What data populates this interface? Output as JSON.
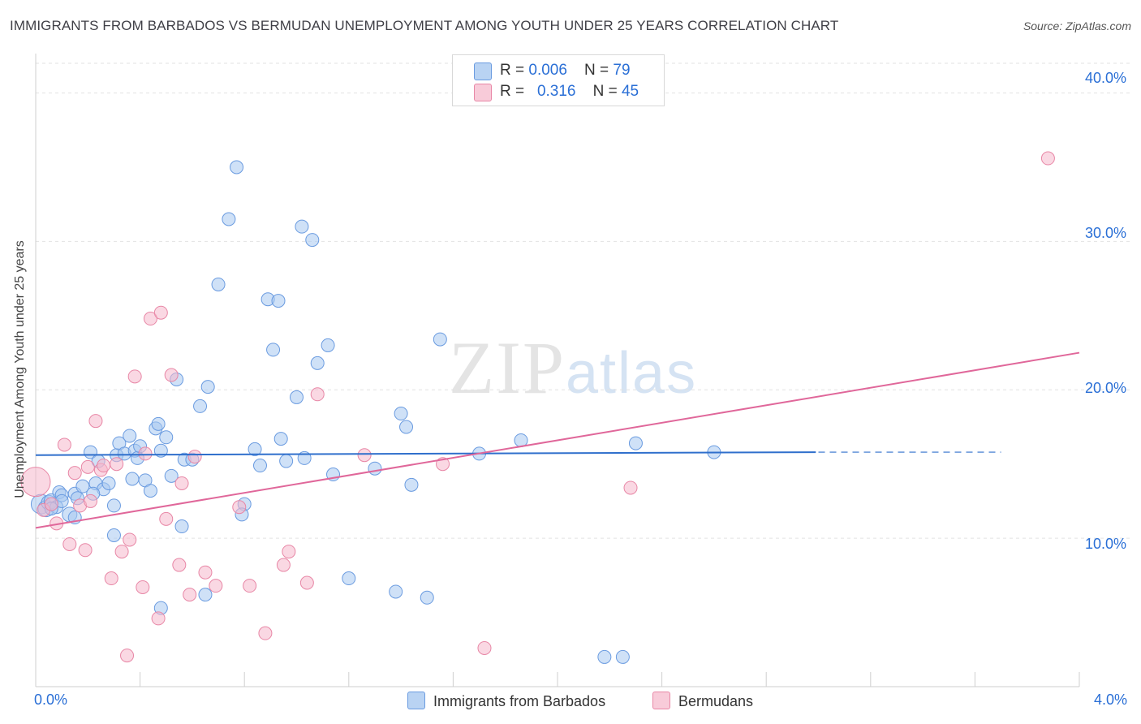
{
  "title": "IMMIGRANTS FROM BARBADOS VS BERMUDAN UNEMPLOYMENT AMONG YOUTH UNDER 25 YEARS CORRELATION CHART",
  "source": "Source: ZipAtlas.com",
  "watermark": {
    "main": "ZIP",
    "sub": "atlas"
  },
  "legend_top": [
    {
      "r_label": "R = ",
      "r_value": "0.006",
      "n_label": "N = ",
      "n_value": "79"
    },
    {
      "r_label": "R = ",
      "r_value": "0.316",
      "n_label": "N = ",
      "n_value": "45"
    }
  ],
  "legend_bottom": [
    "Immigrants from Barbados",
    "Bermudans"
  ],
  "colors": {
    "blue_fill": "#a8c8f0",
    "blue_stroke": "#6a9be0",
    "blue_line": "#2f6fcc",
    "pink_fill": "#f5b8cc",
    "pink_stroke": "#e887a6",
    "pink_line": "#e0679a",
    "tick_text": "#2a6fd6",
    "grid": "#e2e2e2"
  },
  "chart_data": {
    "type": "scatter",
    "xlabel": "",
    "ylabel": "Unemployment Among Youth under 25 years",
    "xlim": [
      0,
      4.0
    ],
    "ylim": [
      0,
      42
    ],
    "x_tick_labels": [
      "0.0%",
      "4.0%"
    ],
    "y_tick_labels": [
      "10.0%",
      "20.0%",
      "30.0%",
      "40.0%"
    ],
    "y_ticks": [
      10,
      20,
      30,
      40
    ],
    "grid": "horizontal dashed",
    "series": [
      {
        "name": "Immigrants from Barbados",
        "color": "blue",
        "trend": {
          "x": [
            0.0,
            3.3
          ],
          "y": [
            15.6,
            15.8
          ]
        },
        "trend_extension": {
          "x": [
            3.0,
            3.7
          ],
          "y": [
            15.8,
            15.8
          ]
        },
        "points": [
          [
            0.02,
            12.3,
            12
          ],
          [
            0.04,
            12.0,
            10
          ],
          [
            0.05,
            12.4,
            9
          ],
          [
            0.06,
            12.5,
            9
          ],
          [
            0.08,
            12.1,
            8
          ],
          [
            0.09,
            13.1,
            8
          ],
          [
            0.1,
            12.9,
            8
          ],
          [
            0.13,
            11.6,
            9
          ],
          [
            0.15,
            13.0,
            8
          ],
          [
            0.16,
            12.7,
            8
          ],
          [
            0.18,
            13.5,
            8
          ],
          [
            0.21,
            15.8,
            8
          ],
          [
            0.23,
            13.7,
            8
          ],
          [
            0.24,
            15.2,
            8
          ],
          [
            0.26,
            13.3,
            8
          ],
          [
            0.28,
            13.7,
            8
          ],
          [
            0.3,
            12.2,
            8
          ],
          [
            0.31,
            15.6,
            8
          ],
          [
            0.32,
            16.4,
            8
          ],
          [
            0.34,
            15.7,
            8
          ],
          [
            0.36,
            16.9,
            8
          ],
          [
            0.38,
            15.9,
            8
          ],
          [
            0.39,
            15.4,
            8
          ],
          [
            0.4,
            16.2,
            8
          ],
          [
            0.42,
            13.9,
            8
          ],
          [
            0.44,
            13.2,
            8
          ],
          [
            0.46,
            17.4,
            8
          ],
          [
            0.47,
            17.7,
            8
          ],
          [
            0.48,
            15.9,
            8
          ],
          [
            0.5,
            16.8,
            8
          ],
          [
            0.52,
            14.2,
            8
          ],
          [
            0.54,
            20.7,
            8
          ],
          [
            0.56,
            10.8,
            8
          ],
          [
            0.57,
            15.3,
            8
          ],
          [
            0.6,
            15.3,
            8
          ],
          [
            0.63,
            18.9,
            8
          ],
          [
            0.66,
            20.2,
            8
          ],
          [
            0.7,
            27.1,
            8
          ],
          [
            0.74,
            31.5,
            8
          ],
          [
            0.77,
            35.0,
            8
          ],
          [
            0.8,
            12.3,
            8
          ],
          [
            0.79,
            11.6,
            8
          ],
          [
            0.84,
            16.0,
            8
          ],
          [
            0.86,
            14.9,
            8
          ],
          [
            0.89,
            26.1,
            8
          ],
          [
            0.91,
            22.7,
            8
          ],
          [
            0.94,
            16.7,
            8
          ],
          [
            0.96,
            15.2,
            8
          ],
          [
            1.0,
            19.5,
            8
          ],
          [
            1.03,
            15.4,
            8
          ],
          [
            1.06,
            30.1,
            8
          ],
          [
            1.08,
            21.8,
            8
          ],
          [
            1.12,
            23.0,
            8
          ],
          [
            1.14,
            14.3,
            8
          ],
          [
            1.2,
            7.3,
            8
          ],
          [
            1.3,
            14.7,
            8
          ],
          [
            1.38,
            6.4,
            8
          ],
          [
            1.4,
            18.4,
            8
          ],
          [
            1.42,
            17.5,
            8
          ],
          [
            1.44,
            13.6,
            8
          ],
          [
            1.5,
            6.0,
            8
          ],
          [
            1.55,
            23.4,
            8
          ],
          [
            1.7,
            15.7,
            8
          ],
          [
            1.86,
            16.6,
            8
          ],
          [
            2.3,
            16.4,
            8
          ],
          [
            2.6,
            15.8,
            8
          ],
          [
            2.18,
            2.0,
            8
          ],
          [
            2.25,
            2.0,
            8
          ],
          [
            0.65,
            6.2,
            8
          ],
          [
            0.3,
            10.2,
            8
          ],
          [
            0.15,
            11.4,
            8
          ],
          [
            0.1,
            12.5,
            8
          ],
          [
            0.06,
            12.0,
            8
          ],
          [
            0.93,
            26.0,
            8
          ],
          [
            0.48,
            5.3,
            8
          ],
          [
            0.37,
            14.0,
            8
          ],
          [
            1.02,
            31.0,
            8
          ],
          [
            0.22,
            13.0,
            8
          ],
          [
            0.9,
            9.0,
            0
          ]
        ]
      },
      {
        "name": "Bermudans",
        "color": "pink",
        "trend": {
          "x": [
            0.0,
            4.0
          ],
          "y": [
            10.7,
            22.5
          ]
        },
        "points": [
          [
            0.0,
            13.8,
            18
          ],
          [
            0.03,
            11.9,
            8
          ],
          [
            0.06,
            12.3,
            8
          ],
          [
            0.08,
            11.0,
            8
          ],
          [
            0.11,
            16.3,
            8
          ],
          [
            0.13,
            9.6,
            8
          ],
          [
            0.15,
            14.4,
            8
          ],
          [
            0.17,
            12.2,
            8
          ],
          [
            0.19,
            9.2,
            8
          ],
          [
            0.2,
            14.8,
            8
          ],
          [
            0.23,
            17.9,
            8
          ],
          [
            0.25,
            14.6,
            8
          ],
          [
            0.26,
            14.9,
            8
          ],
          [
            0.29,
            7.3,
            8
          ],
          [
            0.31,
            15.0,
            8
          ],
          [
            0.33,
            9.1,
            8
          ],
          [
            0.35,
            2.1,
            8
          ],
          [
            0.36,
            9.9,
            8
          ],
          [
            0.38,
            20.9,
            8
          ],
          [
            0.41,
            6.7,
            8
          ],
          [
            0.42,
            15.7,
            8
          ],
          [
            0.44,
            24.8,
            8
          ],
          [
            0.47,
            4.6,
            8
          ],
          [
            0.48,
            25.2,
            8
          ],
          [
            0.5,
            11.3,
            8
          ],
          [
            0.52,
            21.0,
            8
          ],
          [
            0.55,
            8.2,
            8
          ],
          [
            0.56,
            13.7,
            8
          ],
          [
            0.59,
            6.2,
            8
          ],
          [
            0.61,
            15.5,
            8
          ],
          [
            0.65,
            7.7,
            8
          ],
          [
            0.69,
            6.8,
            8
          ],
          [
            0.78,
            12.1,
            8
          ],
          [
            0.82,
            6.8,
            8
          ],
          [
            0.88,
            3.6,
            8
          ],
          [
            0.95,
            8.2,
            8
          ],
          [
            0.97,
            9.1,
            8
          ],
          [
            1.04,
            7.0,
            8
          ],
          [
            1.08,
            19.7,
            8
          ],
          [
            1.26,
            15.6,
            8
          ],
          [
            1.56,
            15.0,
            8
          ],
          [
            1.72,
            2.6,
            8
          ],
          [
            2.28,
            13.4,
            8
          ],
          [
            3.88,
            35.6,
            8
          ],
          [
            0.21,
            12.5,
            8
          ]
        ]
      }
    ]
  }
}
